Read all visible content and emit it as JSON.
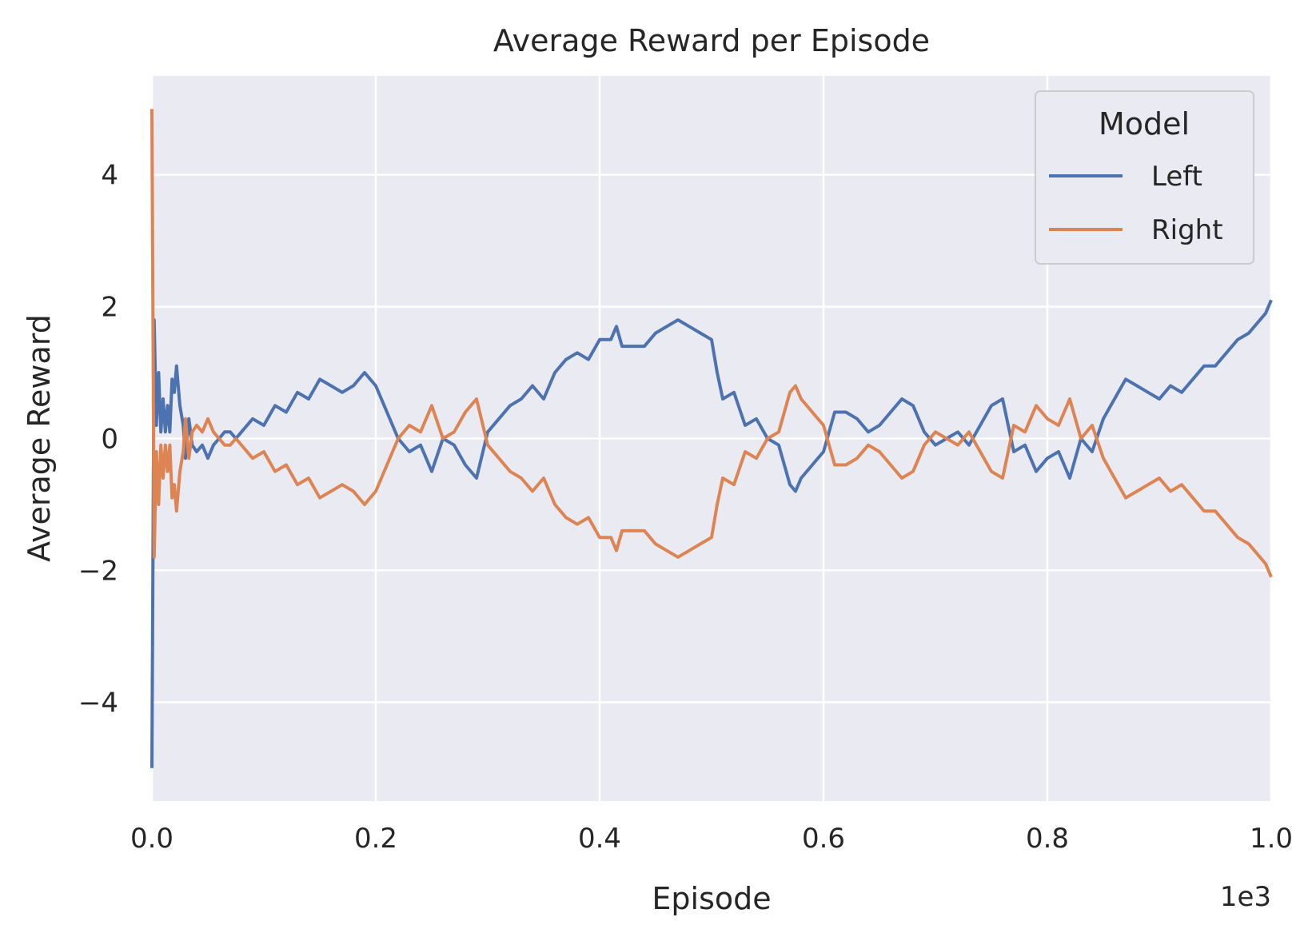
{
  "chart_data": {
    "type": "line",
    "title": "Average Reward per Episode",
    "xlabel": "Episode",
    "ylabel": "Average Reward",
    "x_offset_text": "1e3",
    "xlim": [
      0,
      1000
    ],
    "ylim": [
      -5.5,
      5.5
    ],
    "xticks": [
      0,
      200,
      400,
      600,
      800,
      1000
    ],
    "xtick_labels": [
      "0.0",
      "0.2",
      "0.4",
      "0.6",
      "0.8",
      "1.0"
    ],
    "yticks": [
      4,
      2,
      0,
      -2,
      -4
    ],
    "ytick_labels": [
      "4",
      "2",
      "0",
      "−2",
      "−4"
    ],
    "grid": true,
    "background": "#eaeaf2",
    "legend": {
      "title": "Model",
      "position": "top-right"
    },
    "series": [
      {
        "name": "Left",
        "color": "#4c72b0",
        "x": [
          0,
          2,
          4,
          6,
          8,
          10,
          12,
          14,
          16,
          18,
          20,
          22,
          25,
          28,
          30,
          33,
          36,
          40,
          45,
          50,
          55,
          60,
          65,
          70,
          75,
          80,
          90,
          100,
          110,
          120,
          130,
          140,
          150,
          160,
          170,
          180,
          190,
          195,
          200,
          210,
          220,
          230,
          240,
          250,
          260,
          270,
          280,
          290,
          300,
          310,
          320,
          330,
          340,
          350,
          360,
          370,
          380,
          390,
          400,
          410,
          415,
          420,
          430,
          440,
          450,
          460,
          470,
          480,
          490,
          500,
          505,
          510,
          520,
          530,
          540,
          550,
          560,
          570,
          575,
          580,
          590,
          600,
          610,
          620,
          630,
          640,
          650,
          660,
          670,
          680,
          690,
          700,
          710,
          720,
          730,
          740,
          750,
          760,
          770,
          780,
          790,
          800,
          810,
          820,
          830,
          840,
          850,
          860,
          870,
          880,
          890,
          900,
          910,
          920,
          930,
          940,
          950,
          960,
          970,
          980,
          990,
          995,
          1000
        ],
        "values": [
          -5.0,
          1.8,
          0.2,
          1.0,
          0.1,
          0.6,
          0.1,
          0.5,
          0.1,
          0.9,
          0.7,
          1.1,
          0.5,
          0.2,
          -0.3,
          0.3,
          -0.1,
          -0.2,
          -0.1,
          -0.3,
          -0.1,
          0.0,
          0.1,
          0.1,
          0.0,
          0.1,
          0.3,
          0.2,
          0.5,
          0.4,
          0.7,
          0.6,
          0.9,
          0.8,
          0.7,
          0.8,
          1.0,
          0.9,
          0.8,
          0.4,
          0.0,
          -0.2,
          -0.1,
          -0.5,
          0.0,
          -0.1,
          -0.4,
          -0.6,
          0.1,
          0.3,
          0.5,
          0.6,
          0.8,
          0.6,
          1.0,
          1.2,
          1.3,
          1.2,
          1.5,
          1.5,
          1.7,
          1.4,
          1.4,
          1.4,
          1.6,
          1.7,
          1.8,
          1.7,
          1.6,
          1.5,
          1.0,
          0.6,
          0.7,
          0.2,
          0.3,
          0.0,
          -0.1,
          -0.7,
          -0.8,
          -0.6,
          -0.4,
          -0.2,
          0.4,
          0.4,
          0.3,
          0.1,
          0.2,
          0.4,
          0.6,
          0.5,
          0.1,
          -0.1,
          0.0,
          0.1,
          -0.1,
          0.2,
          0.5,
          0.6,
          -0.2,
          -0.1,
          -0.5,
          -0.3,
          -0.2,
          -0.6,
          0.0,
          -0.2,
          0.3,
          0.6,
          0.9,
          0.8,
          0.7,
          0.6,
          0.8,
          0.7,
          0.9,
          1.1,
          1.1,
          1.3,
          1.5,
          1.6,
          1.8,
          1.9,
          2.1
        ]
      },
      {
        "name": "Right",
        "color": "#dd8452",
        "x": [
          0,
          2,
          4,
          6,
          8,
          10,
          12,
          14,
          16,
          18,
          20,
          22,
          25,
          28,
          30,
          33,
          36,
          40,
          45,
          50,
          55,
          60,
          65,
          70,
          75,
          80,
          90,
          100,
          110,
          120,
          130,
          140,
          150,
          160,
          170,
          180,
          190,
          195,
          200,
          210,
          220,
          230,
          240,
          250,
          260,
          270,
          280,
          290,
          300,
          310,
          320,
          330,
          340,
          350,
          360,
          370,
          380,
          390,
          400,
          410,
          415,
          420,
          430,
          440,
          450,
          460,
          470,
          480,
          490,
          500,
          505,
          510,
          520,
          530,
          540,
          550,
          560,
          570,
          575,
          580,
          590,
          600,
          610,
          620,
          630,
          640,
          650,
          660,
          670,
          680,
          690,
          700,
          710,
          720,
          730,
          740,
          750,
          760,
          770,
          780,
          790,
          800,
          810,
          820,
          830,
          840,
          850,
          860,
          870,
          880,
          890,
          900,
          910,
          920,
          930,
          940,
          950,
          960,
          970,
          980,
          990,
          995,
          1000
        ],
        "values": [
          5.0,
          -1.8,
          -0.2,
          -1.0,
          -0.1,
          -0.6,
          -0.1,
          -0.5,
          -0.1,
          -0.9,
          -0.7,
          -1.1,
          -0.5,
          -0.2,
          0.3,
          -0.3,
          0.1,
          0.2,
          0.1,
          0.3,
          0.1,
          0.0,
          -0.1,
          -0.1,
          0.0,
          -0.1,
          -0.3,
          -0.2,
          -0.5,
          -0.4,
          -0.7,
          -0.6,
          -0.9,
          -0.8,
          -0.7,
          -0.8,
          -1.0,
          -0.9,
          -0.8,
          -0.4,
          0.0,
          0.2,
          0.1,
          0.5,
          0.0,
          0.1,
          0.4,
          0.6,
          -0.1,
          -0.3,
          -0.5,
          -0.6,
          -0.8,
          -0.6,
          -1.0,
          -1.2,
          -1.3,
          -1.2,
          -1.5,
          -1.5,
          -1.7,
          -1.4,
          -1.4,
          -1.4,
          -1.6,
          -1.7,
          -1.8,
          -1.7,
          -1.6,
          -1.5,
          -1.0,
          -0.6,
          -0.7,
          -0.2,
          -0.3,
          0.0,
          0.1,
          0.7,
          0.8,
          0.6,
          0.4,
          0.2,
          -0.4,
          -0.4,
          -0.3,
          -0.1,
          -0.2,
          -0.4,
          -0.6,
          -0.5,
          -0.1,
          0.1,
          0.0,
          -0.1,
          0.1,
          -0.2,
          -0.5,
          -0.6,
          0.2,
          0.1,
          0.5,
          0.3,
          0.2,
          0.6,
          0.0,
          0.2,
          -0.3,
          -0.6,
          -0.9,
          -0.8,
          -0.7,
          -0.6,
          -0.8,
          -0.7,
          -0.9,
          -1.1,
          -1.1,
          -1.3,
          -1.5,
          -1.6,
          -1.8,
          -1.9,
          -2.1
        ]
      }
    ]
  }
}
